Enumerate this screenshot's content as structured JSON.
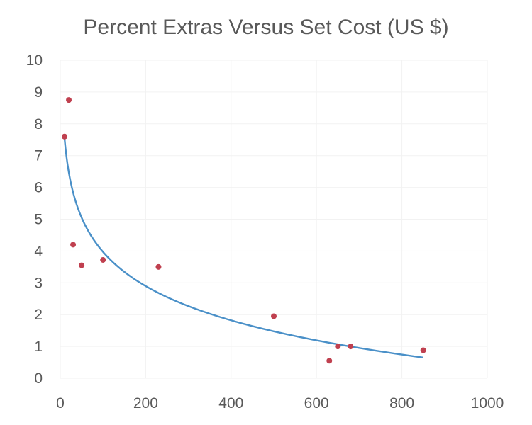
{
  "chart_data": {
    "type": "scatter",
    "title": "Percent Extras Versus Set Cost (US $)",
    "xlabel": "",
    "ylabel": "",
    "xlim": [
      0,
      1000
    ],
    "ylim": [
      0,
      10
    ],
    "x_ticks": [
      "0",
      "200",
      "400",
      "600",
      "800",
      "1000"
    ],
    "y_ticks": [
      "0",
      "1",
      "2",
      "3",
      "4",
      "5",
      "6",
      "7",
      "8",
      "9",
      "10"
    ],
    "grid": true,
    "legend": "none",
    "series": [
      {
        "points": [
          {
            "x": 10,
            "y": 7.6
          },
          {
            "x": 20,
            "y": 8.75
          },
          {
            "x": 30,
            "y": 4.2
          },
          {
            "x": 50,
            "y": 3.55
          },
          {
            "x": 100,
            "y": 3.72
          },
          {
            "x": 230,
            "y": 3.5
          },
          {
            "x": 500,
            "y": 1.95
          },
          {
            "x": 630,
            "y": 0.55
          },
          {
            "x": 650,
            "y": 1.0
          },
          {
            "x": 680,
            "y": 1.0
          },
          {
            "x": 850,
            "y": 0.88
          }
        ],
        "color": "#c0404f"
      }
    ],
    "trendline": {
      "type": "logarithmic",
      "x_range": [
        10,
        850
      ],
      "y_at_start": 7.55,
      "y_at_end": 0.65,
      "color": "#4a90c8"
    }
  }
}
